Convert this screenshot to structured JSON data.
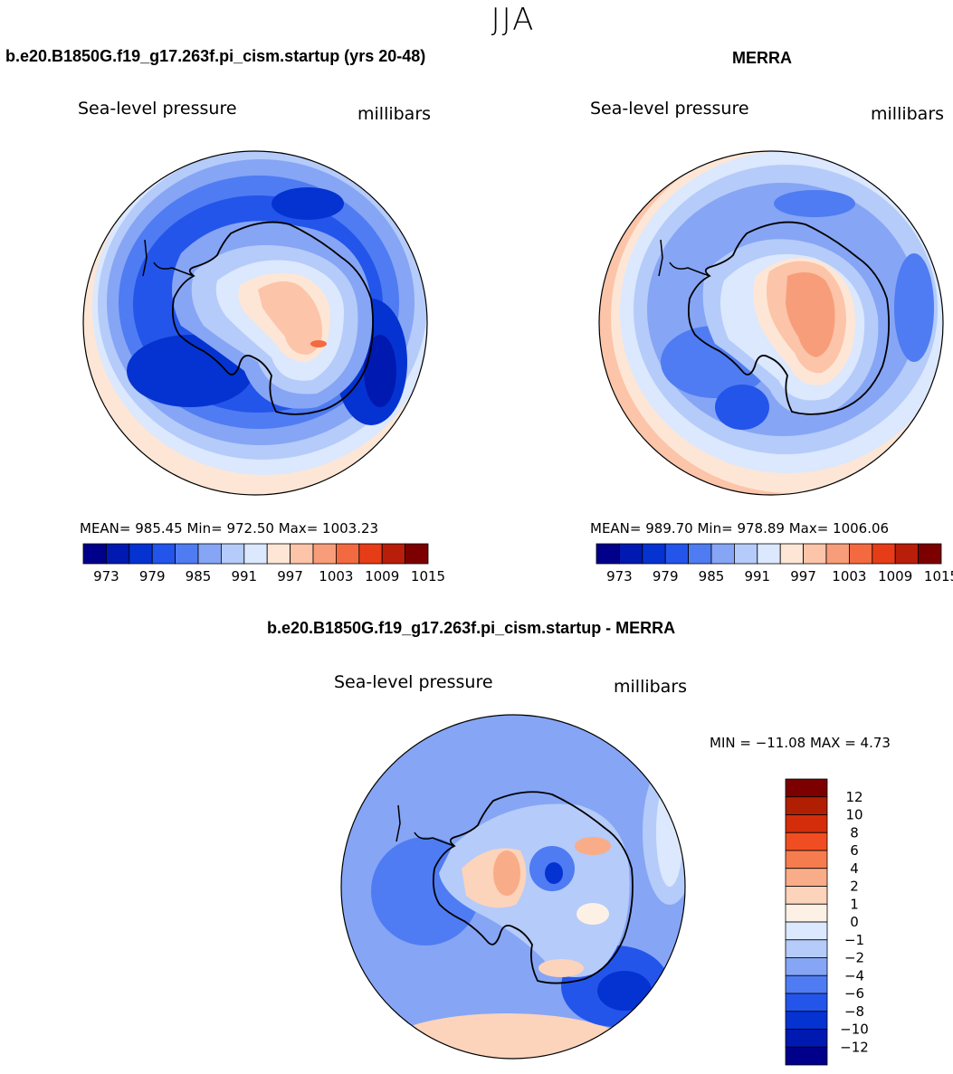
{
  "figure": {
    "season": "JJA",
    "field": "Sea-level pressure",
    "units": "millibars"
  },
  "panels": {
    "model": {
      "title": "b.e20.B1850G.f19_g17.263f.pi_cism.startup (yrs 20-48)",
      "field": "Sea-level pressure",
      "units": "millibars",
      "stats": "MEAN= 985.45   Min= 972.50   Max= 1003.23"
    },
    "obs": {
      "title": "MERRA",
      "field": "Sea-level pressure",
      "units": "millibars",
      "stats": "MEAN= 989.70   Min= 978.89   Max= 1006.06"
    },
    "diff": {
      "title": "b.e20.B1850G.f19_g17.263f.pi_cism.startup - MERRA",
      "field": "Sea-level pressure",
      "units": "millibars",
      "stats": "MIN = −11.08 MAX =    4.73"
    }
  },
  "colorbars": {
    "abs_colors": [
      "#00008a",
      "#0019b0",
      "#0533d1",
      "#2455ea",
      "#4f7cf2",
      "#86a5f5",
      "#b5cbf9",
      "#dbe8fd",
      "#fde6d6",
      "#fcc4a8",
      "#f89d7a",
      "#f46a40",
      "#e63d18",
      "#b81e0a",
      "#7d0000"
    ],
    "abs_labels": [
      "973",
      "979",
      "985",
      "991",
      "997",
      "1003",
      "1009",
      "1015"
    ],
    "diff_colors": [
      "#00008a",
      "#0019b0",
      "#0533d1",
      "#2455ea",
      "#4f7cf2",
      "#86a5f5",
      "#b5cbf9",
      "#dbe8fd",
      "#fdf1e6",
      "#fcd3bb",
      "#f9ac88",
      "#f57c4f",
      "#f04e22",
      "#d42d0c",
      "#b11f03",
      "#7d0000"
    ],
    "diff_labels": [
      "−12",
      "−10",
      "−8",
      "−6",
      "−4",
      "−2",
      "−1",
      "0",
      "1",
      "2",
      "4",
      "6",
      "8",
      "10",
      "12"
    ]
  },
  "chart_data": [
    {
      "type": "heatmap",
      "title": "b.e20.B1850G.f19_g17.263f.pi_cism.startup (yrs 20-48)",
      "variable": "Sea-level pressure",
      "units": "millibars",
      "mean": 985.45,
      "min": 972.5,
      "max": 1003.23,
      "contour_levels": [
        970,
        973,
        976,
        979,
        982,
        985,
        988,
        991,
        994,
        997,
        1000,
        1003,
        1006,
        1009,
        1012,
        1015
      ]
    },
    {
      "type": "heatmap",
      "title": "MERRA",
      "variable": "Sea-level pressure",
      "units": "millibars",
      "mean": 989.7,
      "min": 978.89,
      "max": 1006.06,
      "contour_levels": [
        970,
        973,
        976,
        979,
        982,
        985,
        988,
        991,
        994,
        997,
        1000,
        1003,
        1006,
        1009,
        1012,
        1015
      ]
    },
    {
      "type": "heatmap",
      "title": "b.e20.B1850G.f19_g17.263f.pi_cism.startup - MERRA",
      "variable": "Sea-level pressure",
      "units": "millibars",
      "min": -11.08,
      "max": 4.73,
      "contour_levels": [
        -12,
        -10,
        -8,
        -6,
        -4,
        -2,
        -1,
        0,
        1,
        2,
        4,
        6,
        8,
        10,
        12
      ]
    }
  ]
}
